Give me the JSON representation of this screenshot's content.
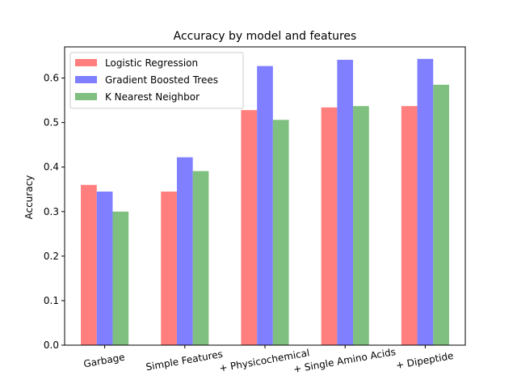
{
  "chart_data": {
    "type": "bar",
    "title": "Accuracy by model and features",
    "xlabel": "",
    "ylabel": "Accuracy",
    "ylim": [
      0,
      0.67
    ],
    "yticks": [
      0.0,
      0.1,
      0.2,
      0.3,
      0.4,
      0.5,
      0.6
    ],
    "ytick_labels": [
      "0.0",
      "0.1",
      "0.2",
      "0.3",
      "0.4",
      "0.5",
      "0.6"
    ],
    "grid": false,
    "legend_position": "top-left",
    "categories": [
      "Garbage",
      "Simple Features",
      "+ Physicochemical",
      "+ Single Amino Acids",
      "+ Dipeptide"
    ],
    "series": [
      {
        "name": "Logistic Regression",
        "color": "#ff7f7f",
        "values": [
          0.36,
          0.345,
          0.528,
          0.534,
          0.537
        ]
      },
      {
        "name": "Gradient Boosted Trees",
        "color": "#7f7fff",
        "values": [
          0.345,
          0.422,
          0.627,
          0.641,
          0.643
        ]
      },
      {
        "name": "K Nearest Neighbor",
        "color": "#7fbf7f",
        "values": [
          0.3,
          0.391,
          0.506,
          0.537,
          0.585
        ]
      }
    ]
  }
}
